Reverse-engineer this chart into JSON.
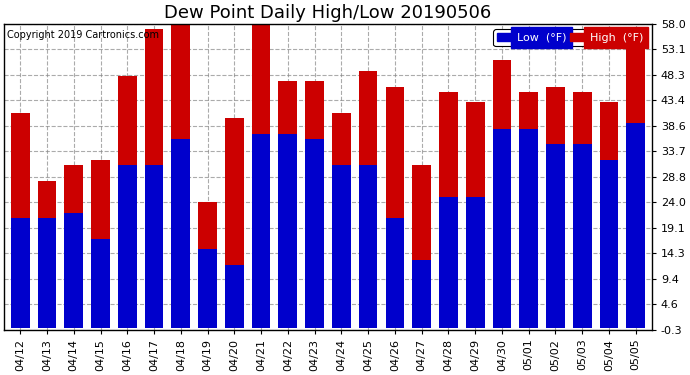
{
  "title": "Dew Point Daily High/Low 20190506",
  "copyright": "Copyright 2019 Cartronics.com",
  "legend_low": "Low  (°F)",
  "legend_high": "High  (°F)",
  "dates": [
    "04/12",
    "04/13",
    "04/14",
    "04/15",
    "04/16",
    "04/17",
    "04/18",
    "04/19",
    "04/20",
    "04/21",
    "04/22",
    "04/23",
    "04/24",
    "04/25",
    "04/26",
    "04/27",
    "04/28",
    "04/29",
    "04/30",
    "05/01",
    "05/02",
    "05/03",
    "05/04",
    "05/05"
  ],
  "low": [
    21,
    21,
    22,
    17,
    31,
    31,
    36,
    15,
    12,
    37,
    37,
    36,
    31,
    31,
    21,
    13,
    25,
    25,
    38,
    38,
    35,
    35,
    32,
    39
  ],
  "high": [
    41,
    28,
    31,
    32,
    48,
    57,
    58,
    24,
    40,
    58,
    47,
    47,
    41,
    49,
    46,
    31,
    45,
    43,
    51,
    45,
    46,
    45,
    43,
    54
  ],
  "ylim_min": -0.3,
  "ylim_max": 58.0,
  "yticks": [
    -0.3,
    4.6,
    9.4,
    14.3,
    19.1,
    24.0,
    28.8,
    33.7,
    38.6,
    43.4,
    48.3,
    53.1,
    58.0
  ],
  "bar_width": 0.7,
  "low_color": "#0000cc",
  "high_color": "#cc0000",
  "background_color": "#ffffff",
  "grid_color": "#888888",
  "title_fontsize": 13,
  "tick_fontsize": 8,
  "legend_fontsize": 8
}
